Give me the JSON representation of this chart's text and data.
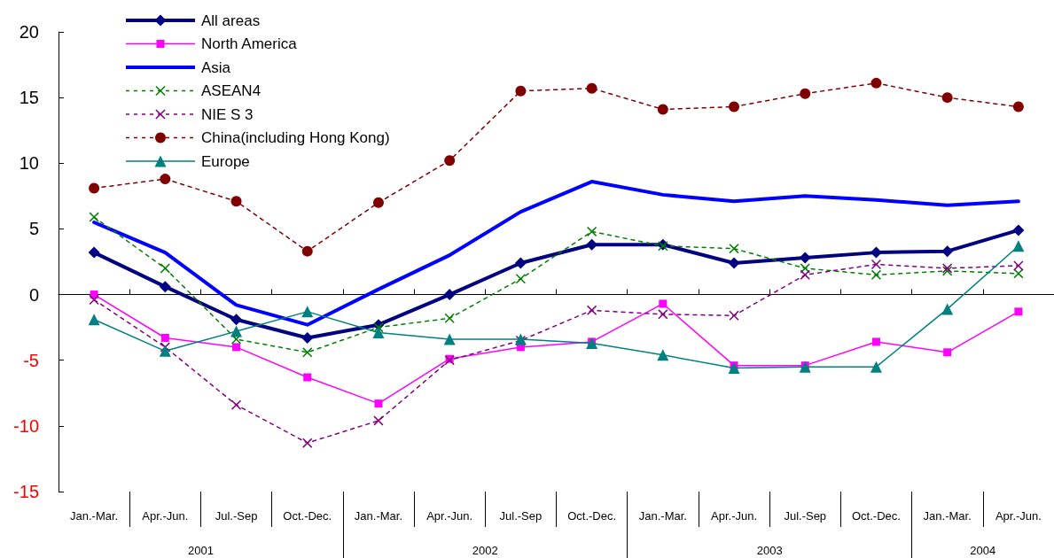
{
  "chart_data": {
    "type": "line",
    "categories": [
      "Jan.-Mar.",
      "Apr.-Jun.",
      "Jul.-Sep",
      "Oct.-Dec.",
      "Jan.-Mar.",
      "Apr.-Jun.",
      "Jul.-Sep",
      "Oct.-Dec.",
      "Jan.-Mar.",
      "Apr.-Jun.",
      "Jul.-Sep",
      "Oct.-Dec.",
      "Jan.-Mar.",
      "Apr.-Jun."
    ],
    "annotations": [
      "2001",
      "2002",
      "2003",
      "2004"
    ],
    "ylim": [
      -15,
      20
    ],
    "yticks": [
      -15,
      -10,
      -5,
      0,
      5,
      10,
      15,
      20
    ],
    "legend": "top left",
    "series": [
      {
        "name": "All areas",
        "color": "#000080",
        "marker": "diamond",
        "line_style": "solid",
        "values": [
          3.2,
          0.6,
          -1.9,
          -3.3,
          -2.3,
          0,
          2.4,
          3.8,
          3.8,
          2.4,
          2.8,
          3.2,
          3.3,
          4.9
        ]
      },
      {
        "name": "North America",
        "color": "#ff00ff",
        "marker": "square",
        "line_style": "solid",
        "values": [
          0,
          -3.3,
          -4.0,
          -6.3,
          -8.3,
          -4.9,
          -4.0,
          -3.6,
          -0.7,
          -5.4,
          -5.4,
          -3.6,
          -4.4,
          -1.3
        ]
      },
      {
        "name": "Asia",
        "color": "#0000ff",
        "marker": "none",
        "line_style": "solid",
        "values": [
          5.5,
          3.2,
          -0.8,
          -2.3,
          0.4,
          3.0,
          6.3,
          8.6,
          7.6,
          7.1,
          7.5,
          7.2,
          6.8,
          7.1
        ]
      },
      {
        "name": "ASEAN4",
        "color": "#008000",
        "marker": "cross",
        "line_style": "dashed",
        "values": [
          5.9,
          2.0,
          -3.4,
          -4.4,
          -2.5,
          -1.8,
          1.2,
          4.8,
          3.7,
          3.5,
          2.0,
          1.5,
          1.8,
          1.6
        ]
      },
      {
        "name": "NIE S 3",
        "color": "#800080",
        "marker": "cross",
        "line_style": "dashed",
        "values": [
          -0.4,
          -4.0,
          -8.4,
          -11.3,
          -9.6,
          -5.0,
          -3.5,
          -1.2,
          -1.5,
          -1.6,
          1.5,
          2.3,
          2.0,
          2.2
        ]
      },
      {
        "name": "China(including Hong Kong)",
        "color": "#800000",
        "marker": "circle",
        "line_style": "dashed",
        "values": [
          8.1,
          8.8,
          7.1,
          3.3,
          7.0,
          10.2,
          15.5,
          15.7,
          14.1,
          14.3,
          15.3,
          16.1,
          15.0,
          14.3
        ]
      },
      {
        "name": "Europe",
        "color": "#008080",
        "marker": "triangle",
        "line_style": "solid",
        "values": [
          -1.9,
          -4.3,
          -2.8,
          -1.3,
          -2.9,
          -3.4,
          -3.4,
          -3.7,
          -4.6,
          -5.6,
          -5.5,
          -5.5,
          -1.1,
          3.7
        ]
      }
    ]
  }
}
